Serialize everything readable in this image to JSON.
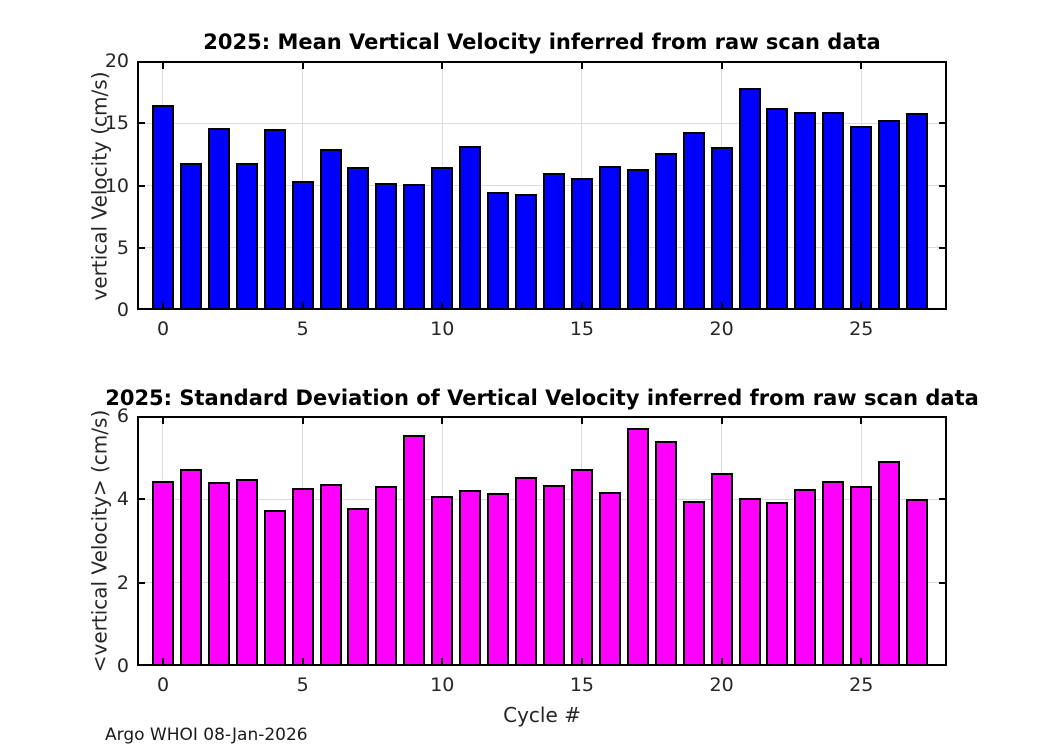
{
  "footer": "Argo WHOI 08-Jan-2026",
  "chart_data": [
    {
      "type": "bar",
      "title": "2025: Mean Vertical Velocity inferred from raw scan data",
      "ylabel": "vertical Velocity (cm/s)",
      "xlabel": "",
      "bar_color": "#0000FF",
      "edge_color": "#000000",
      "grid": true,
      "legend": "none",
      "categories": [
        0,
        1,
        2,
        3,
        4,
        5,
        6,
        7,
        8,
        9,
        10,
        11,
        12,
        13,
        14,
        15,
        16,
        17,
        18,
        19,
        20,
        21,
        22,
        23,
        24,
        25,
        26,
        27
      ],
      "values": [
        16.5,
        11.8,
        14.6,
        11.8,
        14.5,
        10.4,
        12.9,
        11.5,
        10.2,
        10.1,
        11.5,
        13.2,
        9.5,
        9.3,
        11.0,
        10.6,
        11.6,
        11.3,
        12.6,
        14.3,
        13.1,
        17.8,
        16.2,
        15.9,
        15.9,
        14.8,
        15.3,
        15.8
      ],
      "ylim": [
        0,
        20
      ],
      "xlim": [
        -0.93,
        28.07
      ],
      "yticks": [
        0,
        5,
        10,
        15,
        20
      ],
      "xticks": [
        0,
        5,
        10,
        15,
        20,
        25
      ]
    },
    {
      "type": "bar",
      "title": "2025: Standard Deviation of Vertical Velocity inferred from raw scan data",
      "ylabel": "<vertical Velocity> (cm/s)",
      "xlabel": "Cycle #",
      "bar_color": "#FF00FF",
      "edge_color": "#000000",
      "grid": true,
      "legend": "none",
      "categories": [
        0,
        1,
        2,
        3,
        4,
        5,
        6,
        7,
        8,
        9,
        10,
        11,
        12,
        13,
        14,
        15,
        16,
        17,
        18,
        19,
        20,
        21,
        22,
        23,
        24,
        25,
        26,
        27
      ],
      "values": [
        4.44,
        4.74,
        4.42,
        4.48,
        3.74,
        4.27,
        4.38,
        3.79,
        4.33,
        5.55,
        4.07,
        4.22,
        4.16,
        4.54,
        4.35,
        4.73,
        4.18,
        5.72,
        5.41,
        3.96,
        4.63,
        4.04,
        3.94,
        4.24,
        4.43,
        4.33,
        4.92,
        4.01
      ],
      "ylim": [
        0,
        6
      ],
      "xlim": [
        -0.93,
        28.07
      ],
      "yticks": [
        0,
        2,
        4,
        6
      ],
      "xticks": [
        0,
        5,
        10,
        15,
        20,
        25
      ]
    }
  ]
}
